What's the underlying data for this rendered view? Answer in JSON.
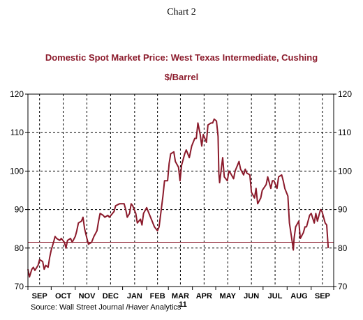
{
  "chart_label": "Chart 2",
  "source": "Source:  Wall Street Journal /Haver Analytics",
  "colors": {
    "series": "#8b1a2b",
    "title": "#8b1a2b",
    "reference_line": "#8b1a2b",
    "grid": "#000000",
    "text": "#000000"
  },
  "chart_data": {
    "type": "line",
    "title": "Domestic Spot Market Price: West Texas Intermediate, Cushing",
    "subtitle": "$/Barrel",
    "xlabel": "",
    "ylabel": "",
    "ylim": [
      70,
      120
    ],
    "y_ticks": [
      70,
      80,
      90,
      100,
      110,
      120
    ],
    "y_axis_both_sides": true,
    "grid": true,
    "grid_style": "dashed",
    "x_period": [
      "2010-09-01",
      "2011-09-30"
    ],
    "x_month_labels": [
      "SEP",
      "OCT",
      "NOV",
      "DEC",
      "JAN",
      "FEB",
      "MAR",
      "APR",
      "MAY",
      "JUN",
      "JUL",
      "AUG",
      "SEP"
    ],
    "x_year_label": "11",
    "reference_line": 81.5,
    "series": [
      {
        "points": [
          [
            "2010-09-01",
            74.5
          ],
          [
            "2010-09-03",
            72.5
          ],
          [
            "2010-09-06",
            74.5
          ],
          [
            "2010-09-08",
            75.0
          ],
          [
            "2010-09-10",
            74.2
          ],
          [
            "2010-09-14",
            75.5
          ],
          [
            "2010-09-16",
            77.0
          ],
          [
            "2010-09-20",
            76.5
          ],
          [
            "2010-09-22",
            74.5
          ],
          [
            "2010-09-24",
            75.5
          ],
          [
            "2010-09-27",
            75.0
          ],
          [
            "2010-09-29",
            77.5
          ],
          [
            "2010-10-01",
            79.5
          ],
          [
            "2010-10-04",
            81.5
          ],
          [
            "2010-10-06",
            83.0
          ],
          [
            "2010-10-08",
            82.5
          ],
          [
            "2010-10-12",
            82.0
          ],
          [
            "2010-10-14",
            82.5
          ],
          [
            "2010-10-18",
            81.5
          ],
          [
            "2010-10-20",
            80.0
          ],
          [
            "2010-10-22",
            82.0
          ],
          [
            "2010-10-26",
            82.5
          ],
          [
            "2010-10-28",
            81.5
          ],
          [
            "2010-11-01",
            83.0
          ],
          [
            "2010-11-03",
            84.5
          ],
          [
            "2010-11-05",
            86.5
          ],
          [
            "2010-11-09",
            87.0
          ],
          [
            "2010-11-11",
            88.0
          ],
          [
            "2010-11-13",
            85.0
          ],
          [
            "2010-11-16",
            82.5
          ],
          [
            "2010-11-18",
            81.0
          ],
          [
            "2010-11-22",
            81.5
          ],
          [
            "2010-11-25",
            83.0
          ],
          [
            "2010-11-29",
            84.5
          ],
          [
            "2010-12-01",
            87.0
          ],
          [
            "2010-12-03",
            89.0
          ],
          [
            "2010-12-07",
            88.5
          ],
          [
            "2010-12-09",
            88.0
          ],
          [
            "2010-12-13",
            88.5
          ],
          [
            "2010-12-15",
            88.0
          ],
          [
            "2010-12-17",
            88.5
          ],
          [
            "2010-12-21",
            89.5
          ],
          [
            "2010-12-23",
            91.0
          ],
          [
            "2010-12-28",
            91.5
          ],
          [
            "2010-12-31",
            91.5
          ],
          [
            "2011-01-03",
            91.5
          ],
          [
            "2011-01-05",
            90.0
          ],
          [
            "2011-01-07",
            88.0
          ],
          [
            "2011-01-10",
            89.0
          ],
          [
            "2011-01-12",
            91.5
          ],
          [
            "2011-01-14",
            91.0
          ],
          [
            "2011-01-18",
            89.0
          ],
          [
            "2011-01-20",
            86.5
          ],
          [
            "2011-01-24",
            87.5
          ],
          [
            "2011-01-26",
            86.0
          ],
          [
            "2011-01-28",
            89.0
          ],
          [
            "2011-02-01",
            90.5
          ],
          [
            "2011-02-03",
            89.5
          ],
          [
            "2011-02-07",
            87.5
          ],
          [
            "2011-02-09",
            86.5
          ],
          [
            "2011-02-11",
            85.5
          ],
          [
            "2011-02-15",
            84.5
          ],
          [
            "2011-02-17",
            85.5
          ],
          [
            "2011-02-22",
            93.5
          ],
          [
            "2011-02-24",
            97.5
          ],
          [
            "2011-02-28",
            97.5
          ],
          [
            "2011-03-02",
            102.0
          ],
          [
            "2011-03-04",
            104.5
          ],
          [
            "2011-03-08",
            105.0
          ],
          [
            "2011-03-10",
            102.5
          ],
          [
            "2011-03-14",
            101.0
          ],
          [
            "2011-03-16",
            97.5
          ],
          [
            "2011-03-18",
            101.5
          ],
          [
            "2011-03-22",
            104.5
          ],
          [
            "2011-03-24",
            105.5
          ],
          [
            "2011-03-28",
            103.5
          ],
          [
            "2011-03-31",
            106.5
          ],
          [
            "2011-04-04",
            108.5
          ],
          [
            "2011-04-06",
            108.5
          ],
          [
            "2011-04-08",
            112.5
          ],
          [
            "2011-04-11",
            109.5
          ],
          [
            "2011-04-13",
            106.5
          ],
          [
            "2011-04-15",
            109.5
          ],
          [
            "2011-04-19",
            107.5
          ],
          [
            "2011-04-21",
            112.0
          ],
          [
            "2011-04-25",
            112.5
          ],
          [
            "2011-04-27",
            112.5
          ],
          [
            "2011-04-29",
            113.5
          ],
          [
            "2011-05-02",
            113.0
          ],
          [
            "2011-05-04",
            109.0
          ],
          [
            "2011-05-05",
            99.5
          ],
          [
            "2011-05-06",
            97.0
          ],
          [
            "2011-05-10",
            103.5
          ],
          [
            "2011-05-12",
            98.5
          ],
          [
            "2011-05-16",
            97.5
          ],
          [
            "2011-05-18",
            100.0
          ],
          [
            "2011-05-20",
            99.5
          ],
          [
            "2011-05-24",
            98.0
          ],
          [
            "2011-05-26",
            100.0
          ],
          [
            "2011-05-31",
            102.5
          ],
          [
            "2011-06-02",
            100.5
          ],
          [
            "2011-06-06",
            99.0
          ],
          [
            "2011-06-08",
            100.5
          ],
          [
            "2011-06-10",
            99.5
          ],
          [
            "2011-06-14",
            99.0
          ],
          [
            "2011-06-16",
            94.5
          ],
          [
            "2011-06-20",
            93.0
          ],
          [
            "2011-06-22",
            95.5
          ],
          [
            "2011-06-24",
            91.5
          ],
          [
            "2011-06-28",
            93.0
          ],
          [
            "2011-06-30",
            95.0
          ],
          [
            "2011-07-05",
            96.5
          ],
          [
            "2011-07-07",
            98.5
          ],
          [
            "2011-07-11",
            95.5
          ],
          [
            "2011-07-13",
            97.5
          ],
          [
            "2011-07-15",
            97.5
          ],
          [
            "2011-07-19",
            95.5
          ],
          [
            "2011-07-21",
            98.5
          ],
          [
            "2011-07-25",
            99.0
          ],
          [
            "2011-07-27",
            97.5
          ],
          [
            "2011-07-29",
            95.5
          ],
          [
            "2011-08-02",
            93.5
          ],
          [
            "2011-08-04",
            86.5
          ],
          [
            "2011-08-08",
            81.0
          ],
          [
            "2011-08-09",
            79.5
          ],
          [
            "2011-08-10",
            82.5
          ],
          [
            "2011-08-12",
            85.5
          ],
          [
            "2011-08-16",
            87.0
          ],
          [
            "2011-08-18",
            82.5
          ],
          [
            "2011-08-22",
            84.0
          ],
          [
            "2011-08-24",
            85.5
          ],
          [
            "2011-08-26",
            85.5
          ],
          [
            "2011-08-30",
            88.5
          ],
          [
            "2011-09-01",
            89.0
          ],
          [
            "2011-09-05",
            86.5
          ],
          [
            "2011-09-07",
            89.0
          ],
          [
            "2011-09-09",
            87.0
          ],
          [
            "2011-09-13",
            90.0
          ],
          [
            "2011-09-15",
            89.5
          ],
          [
            "2011-09-19",
            86.5
          ],
          [
            "2011-09-21",
            86.0
          ],
          [
            "2011-09-23",
            80.0
          ]
        ]
      }
    ]
  }
}
